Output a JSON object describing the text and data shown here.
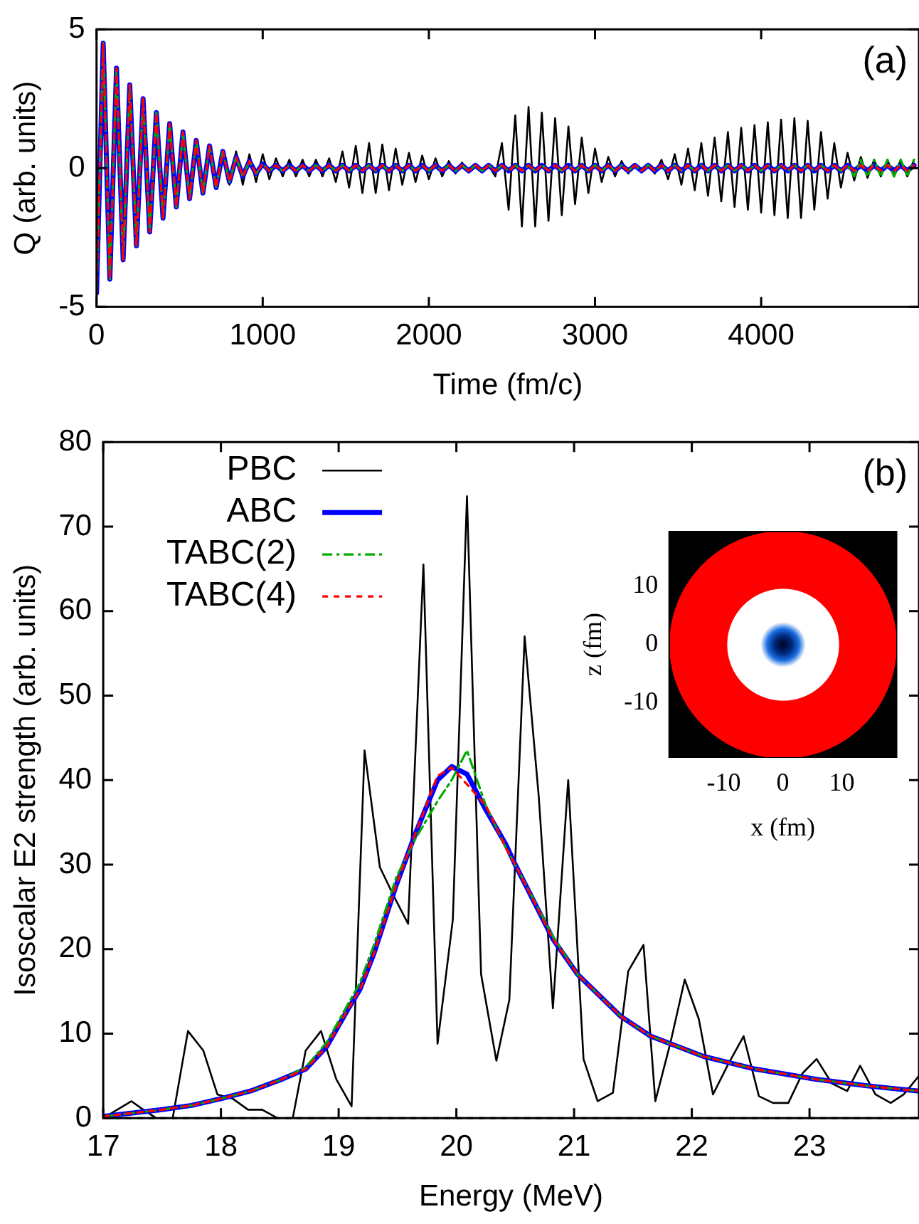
{
  "chart_data": [
    {
      "type": "line",
      "xlabel": "Time (fm/c)",
      "ylabel": "Q (arb. units)",
      "annotations": [
        "(a)"
      ],
      "xlim": [
        0,
        4950
      ],
      "xticks": [
        0,
        1000,
        2000,
        3000,
        4000
      ],
      "ylim": [
        -5,
        5
      ],
      "yticks": [
        -5,
        0,
        5
      ],
      "x": [
        0,
        40,
        80,
        120,
        160,
        200,
        240,
        280,
        320,
        360,
        400,
        440,
        480,
        520,
        560,
        600,
        640,
        680,
        720,
        760,
        800,
        840,
        880,
        920,
        960,
        1000,
        1040,
        1080,
        1120,
        1160,
        1200,
        1240,
        1280,
        1320,
        1360,
        1400,
        1440,
        1480,
        1520,
        1560,
        1600,
        1640,
        1680,
        1720,
        1760,
        1800,
        1840,
        1880,
        1920,
        1960,
        2000,
        2040,
        2080,
        2120,
        2160,
        2200,
        2240,
        2280,
        2320,
        2360,
        2400,
        2440,
        2480,
        2520,
        2560,
        2600,
        2640,
        2680,
        2720,
        2760,
        2800,
        2840,
        2880,
        2920,
        2960,
        3000,
        3040,
        3080,
        3120,
        3160,
        3200,
        3240,
        3280,
        3320,
        3360,
        3400,
        3440,
        3480,
        3520,
        3560,
        3600,
        3640,
        3680,
        3720,
        3760,
        3800,
        3840,
        3880,
        3920,
        3960,
        4000,
        4040,
        4080,
        4120,
        4160,
        4200,
        4240,
        4280,
        4320,
        4360,
        4400,
        4440,
        4480,
        4520,
        4560,
        4600,
        4640,
        4680,
        4720,
        4760,
        4800,
        4840,
        4880,
        4920
      ],
      "series": [
        {
          "color": "#000000",
          "line_style": "solid",
          "values": [
            -4.5,
            4.5,
            -4.0,
            3.6,
            -3.3,
            3.0,
            -2.8,
            2.5,
            -2.3,
            2.0,
            -1.8,
            1.6,
            -1.4,
            1.3,
            -1.1,
            1.0,
            -0.9,
            0.8,
            -0.7,
            0.6,
            -0.6,
            0.6,
            -0.6,
            0.5,
            -0.5,
            0.5,
            -0.4,
            0.35,
            -0.3,
            0.3,
            -0.3,
            0.3,
            -0.3,
            0.3,
            -0.3,
            0.35,
            -0.5,
            0.6,
            -0.7,
            0.8,
            -0.9,
            0.9,
            -0.9,
            0.85,
            -0.8,
            0.7,
            -0.6,
            0.55,
            -0.5,
            0.45,
            -0.4,
            0.35,
            -0.3,
            0.25,
            -0.2,
            0.2,
            -0.15,
            0.1,
            -0.1,
            0.1,
            -0.3,
            0.9,
            -1.5,
            1.9,
            -2.1,
            2.2,
            -2.1,
            2.0,
            -1.9,
            1.8,
            -1.7,
            1.5,
            -1.3,
            1.1,
            -0.9,
            0.7,
            -0.5,
            0.4,
            -0.3,
            0.25,
            -0.2,
            0.15,
            -0.1,
            0.1,
            -0.2,
            0.3,
            -0.4,
            0.5,
            -0.6,
            0.7,
            -0.8,
            0.9,
            -1.0,
            1.1,
            -1.2,
            1.3,
            -1.4,
            1.45,
            -1.5,
            1.55,
            -1.6,
            1.65,
            -1.7,
            1.75,
            -1.8,
            1.8,
            -1.8,
            1.7,
            -1.5,
            1.3,
            -1.1,
            0.9,
            -0.7,
            0.55,
            -0.45,
            0.4,
            -0.35,
            0.3,
            -0.3,
            0.3,
            -0.3,
            0.3,
            -0.3,
            0.3
          ]
        },
        {
          "color": "#0000ff",
          "line_style": "solid",
          "values": [
            -4.5,
            4.5,
            -4.0,
            3.6,
            -3.3,
            3.0,
            -2.8,
            2.5,
            -2.3,
            2.0,
            -1.8,
            1.6,
            -1.4,
            1.3,
            -1.1,
            1.0,
            -0.9,
            0.8,
            -0.7,
            0.6,
            -0.5,
            0.4,
            -0.3,
            0.25,
            -0.2,
            0.15,
            -0.1,
            0.1,
            -0.1,
            0.1,
            -0.1,
            0.1,
            -0.1,
            0.1,
            -0.1,
            0.1,
            -0.1,
            0.1,
            -0.1,
            0.1,
            -0.1,
            0.1,
            -0.1,
            0.1,
            -0.1,
            0.1,
            -0.1,
            0.1,
            -0.1,
            0.1,
            -0.1,
            0.1,
            -0.1,
            0.1,
            -0.1,
            0.1,
            -0.1,
            0.1,
            -0.1,
            0.1,
            -0.1,
            0.1,
            -0.1,
            0.1,
            -0.1,
            0.1,
            -0.1,
            0.1,
            -0.1,
            0.1,
            -0.1,
            0.1,
            -0.1,
            0.1,
            -0.1,
            0.1,
            -0.1,
            0.1,
            -0.1,
            0.1,
            -0.1,
            0.1,
            -0.1,
            0.1,
            -0.1,
            0.1,
            -0.1,
            0.1,
            -0.1,
            0.1,
            -0.1,
            0.1,
            -0.1,
            0.1,
            -0.1,
            0.1,
            -0.1,
            0.1,
            -0.1,
            0.1,
            -0.1,
            0.1,
            -0.1,
            0.1,
            -0.1,
            0.1,
            -0.1,
            0.1,
            -0.1,
            0.1,
            -0.1,
            0.1,
            -0.1,
            0.1,
            -0.1,
            0.1,
            -0.1,
            0.1,
            -0.1,
            0.1,
            -0.1,
            0.1,
            -0.1,
            0.1
          ]
        },
        {
          "color": "#00aa00",
          "line_style": "dashed",
          "values": [
            -4.5,
            4.5,
            -4.0,
            3.6,
            -3.3,
            3.0,
            -2.8,
            2.5,
            -2.3,
            2.0,
            -1.8,
            1.6,
            -1.4,
            1.3,
            -1.1,
            1.0,
            -0.9,
            0.8,
            -0.7,
            0.6,
            -0.5,
            0.4,
            -0.3,
            0.25,
            -0.2,
            0.15,
            -0.1,
            0.1,
            -0.1,
            0.1,
            -0.1,
            0.1,
            -0.1,
            0.1,
            -0.1,
            0.1,
            -0.1,
            0.1,
            -0.1,
            0.1,
            -0.1,
            0.1,
            -0.1,
            0.1,
            -0.1,
            0.1,
            -0.1,
            0.1,
            -0.1,
            0.1,
            -0.1,
            0.1,
            -0.1,
            0.1,
            -0.1,
            0.1,
            -0.1,
            0.1,
            -0.1,
            0.1,
            -0.1,
            0.1,
            -0.1,
            0.1,
            -0.1,
            0.1,
            -0.1,
            0.1,
            -0.1,
            0.1,
            -0.1,
            0.1,
            -0.1,
            0.1,
            -0.1,
            0.1,
            -0.1,
            0.1,
            -0.1,
            0.1,
            -0.1,
            0.1,
            -0.1,
            0.1,
            -0.1,
            0.1,
            -0.1,
            0.1,
            -0.1,
            0.1,
            -0.1,
            0.1,
            -0.1,
            0.1,
            -0.1,
            0.1,
            -0.1,
            0.1,
            -0.1,
            0.1,
            -0.1,
            0.1,
            -0.1,
            0.1,
            -0.1,
            0.1,
            -0.1,
            0.1,
            -0.1,
            0.1,
            -0.1,
            0.1,
            -0.1,
            0.1,
            -0.3,
            0.3,
            -0.3,
            0.3,
            -0.3,
            0.3,
            -0.3,
            0.3,
            -0.3,
            0.3
          ]
        },
        {
          "color": "#ff0000",
          "line_style": "dotted",
          "values": [
            -4.5,
            4.5,
            -4.0,
            3.6,
            -3.3,
            3.0,
            -2.8,
            2.5,
            -2.3,
            2.0,
            -1.8,
            1.6,
            -1.4,
            1.3,
            -1.1,
            1.0,
            -0.9,
            0.8,
            -0.7,
            0.6,
            -0.5,
            0.4,
            -0.3,
            0.25,
            -0.2,
            0.15,
            -0.1,
            0.1,
            -0.1,
            0.1,
            -0.1,
            0.1,
            -0.1,
            0.1,
            -0.1,
            0.1,
            -0.1,
            0.1,
            -0.1,
            0.1,
            -0.1,
            0.1,
            -0.1,
            0.1,
            -0.1,
            0.1,
            -0.1,
            0.1,
            -0.1,
            0.1,
            -0.1,
            0.1,
            -0.1,
            0.1,
            -0.1,
            0.1,
            -0.1,
            0.1,
            -0.1,
            0.1,
            -0.1,
            0.1,
            -0.1,
            0.1,
            -0.1,
            0.1,
            -0.1,
            0.1,
            -0.1,
            0.1,
            -0.1,
            0.1,
            -0.1,
            0.1,
            -0.1,
            0.1,
            -0.1,
            0.1,
            -0.1,
            0.1,
            -0.1,
            0.1,
            -0.1,
            0.1,
            -0.1,
            0.1,
            -0.1,
            0.1,
            -0.1,
            0.1,
            -0.1,
            0.1,
            -0.1,
            0.1,
            -0.1,
            0.1,
            -0.1,
            0.1,
            -0.1,
            0.1,
            -0.1,
            0.1,
            -0.1,
            0.1,
            -0.1,
            0.1,
            -0.1,
            0.1,
            -0.1,
            0.1,
            -0.1,
            0.1,
            -0.1,
            0.1,
            -0.1,
            0.1,
            -0.1,
            0.1,
            -0.1,
            0.1,
            -0.1,
            0.1,
            -0.1,
            0.1
          ]
        }
      ]
    },
    {
      "type": "line",
      "xlabel": "Energy (MeV)",
      "ylabel": "Isoscalar E2 strength (arb. units)",
      "annotations": [
        "(b)"
      ],
      "xlim": [
        17,
        23.93
      ],
      "xticks": [
        17,
        18,
        19,
        20,
        21,
        22,
        23
      ],
      "ylim": [
        0,
        80
      ],
      "yticks": [
        0,
        10,
        20,
        30,
        40,
        50,
        60,
        70,
        80
      ],
      "legend": "top left",
      "ref_lines": [
        {
          "axis": "y",
          "value": 0,
          "color": "#000000",
          "line_style": "dotted"
        }
      ],
      "series": [
        {
          "name": "PBC",
          "color": "#000000",
          "line_style": "solid",
          "x": [
            17,
            17.24,
            17.34,
            17.45,
            17.59,
            17.72,
            17.85,
            17.97,
            18.1,
            18.23,
            18.35,
            18.48,
            18.61,
            18.72,
            18.85,
            18.98,
            19.11,
            19.22,
            19.35,
            19.46,
            19.59,
            19.72,
            19.84,
            19.97,
            20.09,
            20.21,
            20.34,
            20.45,
            20.58,
            20.7,
            20.82,
            20.95,
            21.08,
            21.2,
            21.33,
            21.46,
            21.59,
            21.69,
            21.82,
            21.94,
            22.06,
            22.18,
            22.31,
            22.44,
            22.57,
            22.69,
            22.82,
            22.94,
            23.06,
            23.19,
            23.32,
            23.43,
            23.56,
            23.69,
            23.8,
            23.93
          ],
          "values": [
            0,
            2,
            1,
            0,
            0,
            10.3,
            8,
            2.8,
            2.3,
            1,
            1,
            0,
            0,
            8,
            10.3,
            4.6,
            1.4,
            43.5,
            29.7,
            26.5,
            23,
            65.5,
            8.8,
            23.5,
            73.6,
            17,
            6.8,
            14,
            57,
            38,
            13,
            40,
            7,
            2,
            3,
            17.4,
            20.5,
            2,
            9,
            16.4,
            11.7,
            2.8,
            6.4,
            9.7,
            2.6,
            1.8,
            1.8,
            5.3,
            7,
            4.1,
            3.2,
            6.2,
            2.8,
            1.8,
            2.8,
            5
          ]
        },
        {
          "name": "ABC",
          "color": "#0000ff",
          "line_style": "solid",
          "x": [
            17,
            17.5,
            17.75,
            18,
            18.25,
            18.5,
            18.72,
            18.9,
            19.08,
            19.18,
            19.3,
            19.49,
            19.65,
            19.84,
            19.96,
            20.09,
            20.25,
            20.42,
            20.5,
            20.82,
            21.03,
            21.4,
            21.65,
            22.1,
            22.54,
            23.05,
            23.5,
            23.93
          ],
          "values": [
            0.2,
            1,
            1.5,
            2.3,
            3.2,
            4.5,
            5.8,
            8.5,
            12.9,
            15.2,
            19.5,
            27.6,
            33.6,
            40,
            41.6,
            40.7,
            36.5,
            32.4,
            30,
            21.2,
            17,
            12,
            9.7,
            7.3,
            5.8,
            4.6,
            3.8,
            3.2
          ]
        },
        {
          "name": "TABC(2)",
          "color": "#00aa00",
          "line_style": "dashed",
          "x": [
            17,
            17.5,
            17.75,
            18,
            18.25,
            18.5,
            18.72,
            18.9,
            19.08,
            19.18,
            19.3,
            19.49,
            19.65,
            19.84,
            19.96,
            20.09,
            20.25,
            20.42,
            20.5,
            20.82,
            21.03,
            21.4,
            21.65,
            22.1,
            22.54,
            23.05,
            23.5,
            23.93
          ],
          "values": [
            0.2,
            1,
            1.5,
            2.3,
            3.2,
            4.5,
            6,
            9,
            13.5,
            16,
            20.5,
            28.5,
            33,
            37.5,
            40,
            43.5,
            37,
            32,
            30,
            21.5,
            17,
            12,
            9.7,
            7.3,
            5.8,
            4.6,
            3.8,
            3.2
          ]
        },
        {
          "name": "TABC(4)",
          "color": "#ff0000",
          "line_style": "dotted",
          "x": [
            17,
            17.5,
            17.75,
            18,
            18.25,
            18.5,
            18.72,
            18.9,
            19.08,
            19.18,
            19.3,
            19.49,
            19.65,
            19.84,
            19.96,
            20.09,
            20.25,
            20.42,
            20.5,
            20.82,
            21.03,
            21.4,
            21.65,
            22.1,
            22.54,
            23.05,
            23.5,
            23.93
          ],
          "values": [
            0.2,
            1,
            1.5,
            2.3,
            3.2,
            4.5,
            5.8,
            8.5,
            12.9,
            15.2,
            19.5,
            27.6,
            33.6,
            40.5,
            41.5,
            39.5,
            37,
            32,
            30,
            21.2,
            17,
            12,
            9.7,
            7.3,
            5.8,
            4.6,
            3.8,
            3.2
          ]
        }
      ]
    },
    {
      "type": "scatter",
      "xlabel": "x (fm)",
      "ylabel": "z (fm)",
      "xlim": [
        -19.2,
        19.2
      ],
      "ylim": [
        -19.2,
        19.2
      ],
      "xticks": [
        -10,
        0,
        10
      ],
      "yticks": [
        -10,
        0,
        10
      ]
    }
  ]
}
